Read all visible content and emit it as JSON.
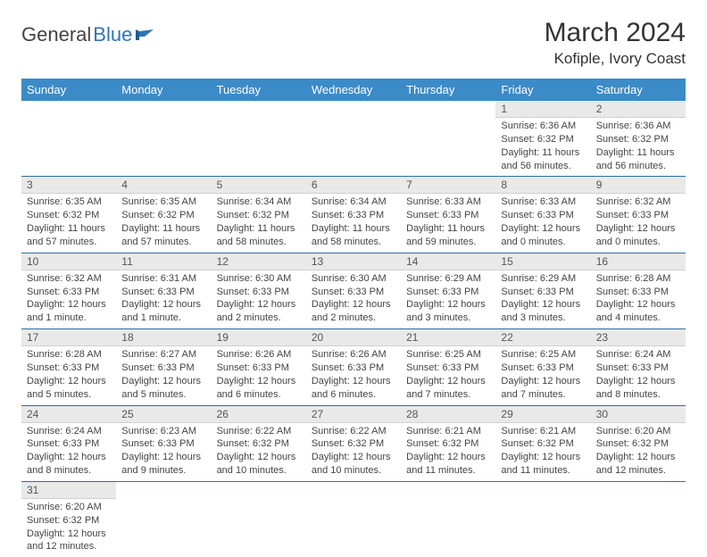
{
  "logo": {
    "text1": "General",
    "text2": "Blue"
  },
  "title": "March 2024",
  "location": "Kofiple, Ivory Coast",
  "colors": {
    "header_bg": "#3b8bc8",
    "header_text": "#ffffff",
    "daynum_bg": "#e9e9e9",
    "row_border": "#2e6da4",
    "logo_blue": "#2e75b6"
  },
  "weekdays": [
    "Sunday",
    "Monday",
    "Tuesday",
    "Wednesday",
    "Thursday",
    "Friday",
    "Saturday"
  ],
  "weeks": [
    [
      {
        "empty": true
      },
      {
        "empty": true
      },
      {
        "empty": true
      },
      {
        "empty": true
      },
      {
        "empty": true
      },
      {
        "day": "1",
        "sunrise": "Sunrise: 6:36 AM",
        "sunset": "Sunset: 6:32 PM",
        "daylight": "Daylight: 11 hours and 56 minutes."
      },
      {
        "day": "2",
        "sunrise": "Sunrise: 6:36 AM",
        "sunset": "Sunset: 6:32 PM",
        "daylight": "Daylight: 11 hours and 56 minutes."
      }
    ],
    [
      {
        "day": "3",
        "sunrise": "Sunrise: 6:35 AM",
        "sunset": "Sunset: 6:32 PM",
        "daylight": "Daylight: 11 hours and 57 minutes."
      },
      {
        "day": "4",
        "sunrise": "Sunrise: 6:35 AM",
        "sunset": "Sunset: 6:32 PM",
        "daylight": "Daylight: 11 hours and 57 minutes."
      },
      {
        "day": "5",
        "sunrise": "Sunrise: 6:34 AM",
        "sunset": "Sunset: 6:32 PM",
        "daylight": "Daylight: 11 hours and 58 minutes."
      },
      {
        "day": "6",
        "sunrise": "Sunrise: 6:34 AM",
        "sunset": "Sunset: 6:33 PM",
        "daylight": "Daylight: 11 hours and 58 minutes."
      },
      {
        "day": "7",
        "sunrise": "Sunrise: 6:33 AM",
        "sunset": "Sunset: 6:33 PM",
        "daylight": "Daylight: 11 hours and 59 minutes."
      },
      {
        "day": "8",
        "sunrise": "Sunrise: 6:33 AM",
        "sunset": "Sunset: 6:33 PM",
        "daylight": "Daylight: 12 hours and 0 minutes."
      },
      {
        "day": "9",
        "sunrise": "Sunrise: 6:32 AM",
        "sunset": "Sunset: 6:33 PM",
        "daylight": "Daylight: 12 hours and 0 minutes."
      }
    ],
    [
      {
        "day": "10",
        "sunrise": "Sunrise: 6:32 AM",
        "sunset": "Sunset: 6:33 PM",
        "daylight": "Daylight: 12 hours and 1 minute."
      },
      {
        "day": "11",
        "sunrise": "Sunrise: 6:31 AM",
        "sunset": "Sunset: 6:33 PM",
        "daylight": "Daylight: 12 hours and 1 minute."
      },
      {
        "day": "12",
        "sunrise": "Sunrise: 6:30 AM",
        "sunset": "Sunset: 6:33 PM",
        "daylight": "Daylight: 12 hours and 2 minutes."
      },
      {
        "day": "13",
        "sunrise": "Sunrise: 6:30 AM",
        "sunset": "Sunset: 6:33 PM",
        "daylight": "Daylight: 12 hours and 2 minutes."
      },
      {
        "day": "14",
        "sunrise": "Sunrise: 6:29 AM",
        "sunset": "Sunset: 6:33 PM",
        "daylight": "Daylight: 12 hours and 3 minutes."
      },
      {
        "day": "15",
        "sunrise": "Sunrise: 6:29 AM",
        "sunset": "Sunset: 6:33 PM",
        "daylight": "Daylight: 12 hours and 3 minutes."
      },
      {
        "day": "16",
        "sunrise": "Sunrise: 6:28 AM",
        "sunset": "Sunset: 6:33 PM",
        "daylight": "Daylight: 12 hours and 4 minutes."
      }
    ],
    [
      {
        "day": "17",
        "sunrise": "Sunrise: 6:28 AM",
        "sunset": "Sunset: 6:33 PM",
        "daylight": "Daylight: 12 hours and 5 minutes."
      },
      {
        "day": "18",
        "sunrise": "Sunrise: 6:27 AM",
        "sunset": "Sunset: 6:33 PM",
        "daylight": "Daylight: 12 hours and 5 minutes."
      },
      {
        "day": "19",
        "sunrise": "Sunrise: 6:26 AM",
        "sunset": "Sunset: 6:33 PM",
        "daylight": "Daylight: 12 hours and 6 minutes."
      },
      {
        "day": "20",
        "sunrise": "Sunrise: 6:26 AM",
        "sunset": "Sunset: 6:33 PM",
        "daylight": "Daylight: 12 hours and 6 minutes."
      },
      {
        "day": "21",
        "sunrise": "Sunrise: 6:25 AM",
        "sunset": "Sunset: 6:33 PM",
        "daylight": "Daylight: 12 hours and 7 minutes."
      },
      {
        "day": "22",
        "sunrise": "Sunrise: 6:25 AM",
        "sunset": "Sunset: 6:33 PM",
        "daylight": "Daylight: 12 hours and 7 minutes."
      },
      {
        "day": "23",
        "sunrise": "Sunrise: 6:24 AM",
        "sunset": "Sunset: 6:33 PM",
        "daylight": "Daylight: 12 hours and 8 minutes."
      }
    ],
    [
      {
        "day": "24",
        "sunrise": "Sunrise: 6:24 AM",
        "sunset": "Sunset: 6:33 PM",
        "daylight": "Daylight: 12 hours and 8 minutes."
      },
      {
        "day": "25",
        "sunrise": "Sunrise: 6:23 AM",
        "sunset": "Sunset: 6:33 PM",
        "daylight": "Daylight: 12 hours and 9 minutes."
      },
      {
        "day": "26",
        "sunrise": "Sunrise: 6:22 AM",
        "sunset": "Sunset: 6:32 PM",
        "daylight": "Daylight: 12 hours and 10 minutes."
      },
      {
        "day": "27",
        "sunrise": "Sunrise: 6:22 AM",
        "sunset": "Sunset: 6:32 PM",
        "daylight": "Daylight: 12 hours and 10 minutes."
      },
      {
        "day": "28",
        "sunrise": "Sunrise: 6:21 AM",
        "sunset": "Sunset: 6:32 PM",
        "daylight": "Daylight: 12 hours and 11 minutes."
      },
      {
        "day": "29",
        "sunrise": "Sunrise: 6:21 AM",
        "sunset": "Sunset: 6:32 PM",
        "daylight": "Daylight: 12 hours and 11 minutes."
      },
      {
        "day": "30",
        "sunrise": "Sunrise: 6:20 AM",
        "sunset": "Sunset: 6:32 PM",
        "daylight": "Daylight: 12 hours and 12 minutes."
      }
    ],
    [
      {
        "day": "31",
        "sunrise": "Sunrise: 6:20 AM",
        "sunset": "Sunset: 6:32 PM",
        "daylight": "Daylight: 12 hours and 12 minutes."
      },
      {
        "empty": true
      },
      {
        "empty": true
      },
      {
        "empty": true
      },
      {
        "empty": true
      },
      {
        "empty": true
      },
      {
        "empty": true
      }
    ]
  ]
}
